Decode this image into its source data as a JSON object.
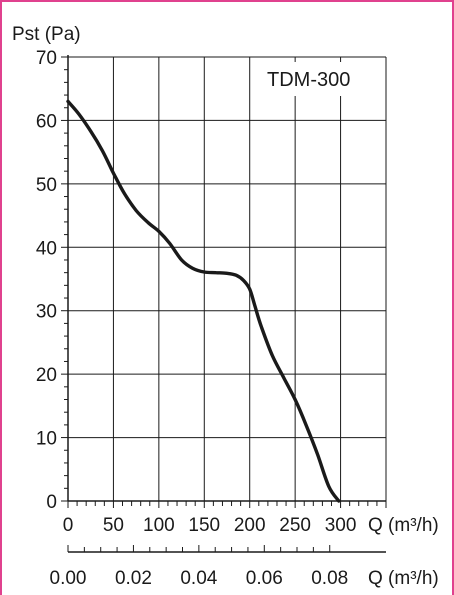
{
  "chart_data": {
    "type": "line",
    "title": "TDM-300",
    "ylabel": "Pst (Pa)",
    "xlabel": "Q (m³/h)",
    "secondary_xlabel": "Q (m³/h)",
    "ylim": [
      0,
      70
    ],
    "xlim": [
      0,
      350
    ],
    "secondary_xlim": [
      0,
      0.0972
    ],
    "grid": true,
    "y_ticks": [
      "0",
      "10",
      "20",
      "30",
      "40",
      "50",
      "60",
      "70"
    ],
    "x_ticks": [
      "0",
      "50",
      "100",
      "150",
      "200",
      "250",
      "300"
    ],
    "secondary_x_ticks": [
      "0.00",
      "0.02",
      "0.04",
      "0.06",
      "0.08"
    ],
    "series": [
      {
        "x": [
          0,
          12,
          25,
          38,
          50,
          62,
          75,
          88,
          100,
          112,
          125,
          137,
          150,
          163,
          175,
          185,
          193,
          200,
          206,
          213,
          225,
          238,
          250,
          262,
          275,
          287,
          298
        ],
        "y": [
          63,
          61,
          58.3,
          55.2,
          51.7,
          48.5,
          45.8,
          43.9,
          42.5,
          40.6,
          38,
          36.7,
          36.1,
          36,
          35.9,
          35.6,
          34.8,
          33.4,
          30.6,
          27.4,
          22.9,
          19.3,
          16,
          12,
          7.2,
          2.3,
          0
        ]
      }
    ],
    "colors": {
      "frame": "#e0418e",
      "curve": "#1a1a1a",
      "grid": "#1a1a1a"
    }
  }
}
